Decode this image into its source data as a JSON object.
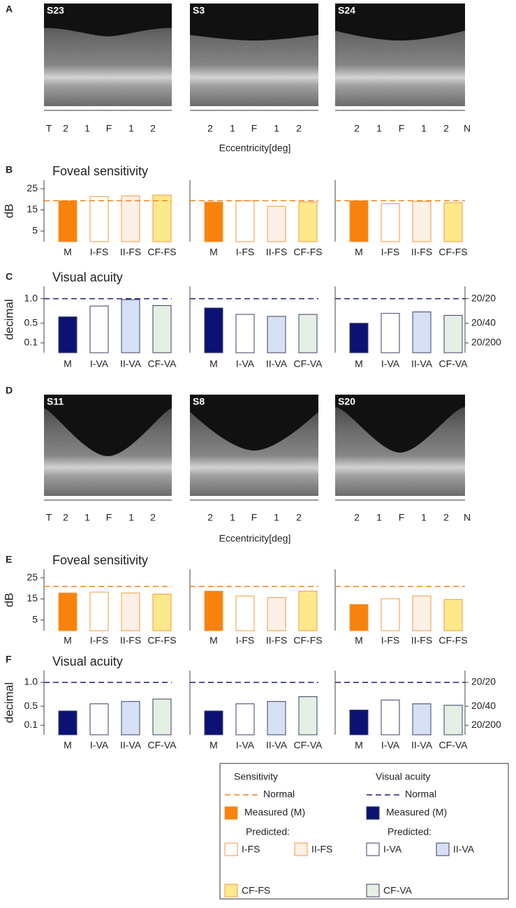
{
  "panel_labels": [
    "A",
    "B",
    "C",
    "D",
    "E",
    "F"
  ],
  "oct_rows": [
    {
      "subjects": [
        "S23",
        "S3",
        "S24"
      ]
    },
    {
      "subjects": [
        "S11",
        "S8",
        "S20"
      ]
    }
  ],
  "eccentricity": {
    "label": "Eccentricity[deg]",
    "columns": [
      [
        "T",
        "2",
        "1",
        "F",
        "1",
        "2"
      ],
      [
        "2",
        "1",
        "F",
        "1",
        "2"
      ],
      [
        "2",
        "1",
        "F",
        "1",
        "2",
        "N"
      ]
    ]
  },
  "chart_data": [
    {
      "type": "bar",
      "title": "Foveal sensitivity",
      "ylabel": "dB",
      "categories": [
        "M",
        "I-FS",
        "II-FS",
        "CF-FS"
      ],
      "values": [
        19.3,
        21.3,
        21.6,
        22.0
      ],
      "colors": [
        "#f7820d",
        "#ffffff",
        "#fdf0e6",
        "#fde98c"
      ],
      "edgecolor": "#f39a3e",
      "ylim": [
        0,
        29
      ],
      "yticks": [
        5,
        15,
        25
      ],
      "reference_line": 19.3,
      "reference_color": "#f5820f"
    },
    {
      "type": "bar",
      "categories": [
        "M",
        "I-FS",
        "II-FS",
        "CF-FS"
      ],
      "values": [
        18.7,
        19.3,
        16.7,
        18.7
      ],
      "colors": [
        "#f7820d",
        "#ffffff",
        "#fdf0e6",
        "#fde98c"
      ],
      "edgecolor": "#f39a3e",
      "ylim": [
        0,
        29
      ],
      "reference_line": 19.3,
      "reference_color": "#f5820f"
    },
    {
      "type": "bar",
      "categories": [
        "M",
        "I-FS",
        "II-FS",
        "CF-FS"
      ],
      "values": [
        19.3,
        18.0,
        19.0,
        18.4
      ],
      "colors": [
        "#f7820d",
        "#ffffff",
        "#fdf0e6",
        "#fde98c"
      ],
      "edgecolor": "#f39a3e",
      "ylim": [
        0,
        29
      ],
      "reference_line": 19.3,
      "reference_color": "#f5820f"
    },
    {
      "type": "bar",
      "title": "Visual acuity",
      "ylabel": "decimal",
      "categories": [
        "M",
        "I-VA",
        "II-VA",
        "CF-VA"
      ],
      "values": [
        0.63,
        0.85,
        0.98,
        0.86
      ],
      "colors": [
        "#0c1273",
        "#ffffff",
        "#d6e0f5",
        "#e5efe3"
      ],
      "edgecolor": "#3a3f66",
      "ylim": [
        -0.1,
        1.25
      ],
      "yticks": [
        0.1,
        0.5,
        {
          "value": 1,
          "label": "1.0"
        }
      ],
      "reference_line": 1,
      "reference_color": "#1a1f80"
    },
    {
      "type": "bar",
      "categories": [
        "M",
        "I-VA",
        "II-VA",
        "CF-VA"
      ],
      "values": [
        0.81,
        0.68,
        0.64,
        0.68
      ],
      "colors": [
        "#0c1273",
        "#ffffff",
        "#d6e0f5",
        "#e5efe3"
      ],
      "edgecolor": "#3a3f66",
      "ylim": [
        -0.1,
        1.25
      ],
      "reference_line": 1,
      "reference_color": "#1a1f80"
    },
    {
      "type": "bar",
      "categories": [
        "M",
        "I-VA",
        "II-VA",
        "CF-VA"
      ],
      "values": [
        0.5,
        0.7,
        0.73,
        0.66
      ],
      "colors": [
        "#0c1273",
        "#ffffff",
        "#d6e0f5",
        "#e5efe3"
      ],
      "edgecolor": "#3a3f66",
      "ylim": [
        -0.1,
        1.25
      ],
      "y2lim": [
        -0.1,
        1.25
      ],
      "y2ticks": [
        {
          "value": 1,
          "label": "20/20"
        },
        {
          "value": 0.5,
          "label": "20/40"
        },
        {
          "value": 0.1,
          "label": "20/200"
        }
      ],
      "reference_line": 1,
      "reference_color": "#1a1f80"
    },
    {
      "type": "bar",
      "title": "Foveal sensitivity",
      "ylabel": "dB",
      "categories": [
        "M",
        "I-FS",
        "II-FS",
        "CF-FS"
      ],
      "values": [
        17.8,
        18.2,
        17.8,
        17.3
      ],
      "colors": [
        "#f7820d",
        "#ffffff",
        "#fdf0e6",
        "#fde98c"
      ],
      "edgecolor": "#f39a3e",
      "ylim": [
        0,
        29
      ],
      "yticks": [
        5,
        15,
        25
      ],
      "reference_line": 20.9,
      "reference_color": "#f5820f"
    },
    {
      "type": "bar",
      "categories": [
        "M",
        "I-FS",
        "II-FS",
        "CF-FS"
      ],
      "values": [
        18.7,
        16.4,
        15.6,
        18.7
      ],
      "colors": [
        "#f7820d",
        "#ffffff",
        "#fdf0e6",
        "#fde98c"
      ],
      "edgecolor": "#f39a3e",
      "ylim": [
        0,
        29
      ],
      "reference_line": 20.9,
      "reference_color": "#f5820f"
    },
    {
      "type": "bar",
      "categories": [
        "M",
        "I-FS",
        "II-FS",
        "CF-FS"
      ],
      "values": [
        12.4,
        15.1,
        16.4,
        14.7
      ],
      "colors": [
        "#f7820d",
        "#ffffff",
        "#fdf0e6",
        "#fde98c"
      ],
      "edgecolor": "#f39a3e",
      "ylim": [
        0,
        29
      ],
      "reference_line": 20.9,
      "reference_color": "#f5820f"
    },
    {
      "type": "bar",
      "title": "Visual acuity",
      "ylabel": "decimal",
      "categories": [
        "M",
        "I-VA",
        "II-VA",
        "CF-VA"
      ],
      "values": [
        0.4,
        0.55,
        0.6,
        0.65
      ],
      "colors": [
        "#0c1273",
        "#ffffff",
        "#d6e0f5",
        "#e5efe3"
      ],
      "edgecolor": "#3a3f66",
      "ylim": [
        -0.1,
        1.25
      ],
      "yticks": [
        0.1,
        0.5,
        {
          "value": 1,
          "label": "1.0"
        }
      ],
      "reference_line": 1,
      "reference_color": "#1a1f80"
    },
    {
      "type": "bar",
      "categories": [
        "M",
        "I-VA",
        "II-VA",
        "CF-VA"
      ],
      "values": [
        0.4,
        0.55,
        0.6,
        0.7
      ],
      "colors": [
        "#0c1273",
        "#ffffff",
        "#d6e0f5",
        "#e5efe3"
      ],
      "edgecolor": "#3a3f66",
      "ylim": [
        -0.1,
        1.25
      ],
      "reference_line": 1,
      "reference_color": "#1a1f80"
    },
    {
      "type": "bar",
      "categories": [
        "M",
        "I-VA",
        "II-VA",
        "CF-VA"
      ],
      "values": [
        0.42,
        0.63,
        0.55,
        0.52
      ],
      "colors": [
        "#0c1273",
        "#ffffff",
        "#d6e0f5",
        "#e5efe3"
      ],
      "edgecolor": "#3a3f66",
      "ylim": [
        -0.1,
        1.25
      ],
      "y2lim": [
        -0.1,
        1.25
      ],
      "y2ticks": [
        {
          "value": 1,
          "label": "20/20"
        },
        {
          "value": 0.5,
          "label": "20/40"
        },
        {
          "value": 0.1,
          "label": "20/200"
        }
      ],
      "reference_line": 1,
      "reference_color": "#1a1f80"
    }
  ],
  "legend": {
    "sensitivity": {
      "title": "Sensitivity",
      "normal": "Normal",
      "measured": "Measured (M)",
      "predicted": "Predicted:",
      "items": [
        "I-FS",
        "II-FS",
        "CF-FS"
      ]
    },
    "visual_acuity": {
      "title": "Visual acuity",
      "normal": "Normal",
      "measured": "Measured (M)",
      "predicted": "Predicted:",
      "items": [
        "I-VA",
        "II-VA",
        "CF-VA"
      ]
    }
  }
}
